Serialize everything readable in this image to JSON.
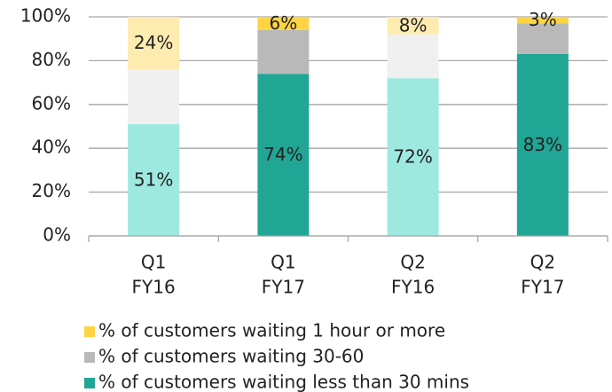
{
  "chart_data": {
    "type": "stacked_bar",
    "categories": [
      [
        "Q1",
        "FY16"
      ],
      [
        "Q1",
        "FY17"
      ],
      [
        "Q2",
        "FY16"
      ],
      [
        "Q2",
        "FY17"
      ]
    ],
    "series": [
      {
        "name": "% of customers waiting less than 30 mins",
        "color": "#21a595",
        "colors": [
          "#9de9df",
          "#21a595",
          "#9de9df",
          "#21a595"
        ],
        "values": [
          51,
          74,
          72,
          83
        ],
        "value_labels": [
          "51%",
          "74%",
          "72%",
          "83%"
        ]
      },
      {
        "name": "% of customers waiting 30-60",
        "color": "#b9b9b9",
        "colors": [
          "#f0f0f0",
          "#b9b9b9",
          "#f0f0f0",
          "#b9b9b9"
        ],
        "values": [
          25,
          20,
          20,
          14
        ]
      },
      {
        "name": "% of customers waiting 1 hour or more",
        "color": "#fdd444",
        "colors": [
          "#fdebb0",
          "#fdd444",
          "#fdebb0",
          "#fdd444"
        ],
        "values": [
          24,
          6,
          8,
          3
        ],
        "value_labels": [
          "24%",
          "6%",
          "8%",
          "3%"
        ]
      }
    ],
    "ylim": [
      0,
      100
    ],
    "yticks": [
      {
        "value": 0,
        "label": "0%"
      },
      {
        "value": 20,
        "label": "20%"
      },
      {
        "value": 40,
        "label": "40%"
      },
      {
        "value": 60,
        "label": "60%"
      },
      {
        "value": 80,
        "label": "80%"
      },
      {
        "value": 100,
        "label": "100%"
      }
    ],
    "grid": true,
    "legend": "bottom"
  }
}
